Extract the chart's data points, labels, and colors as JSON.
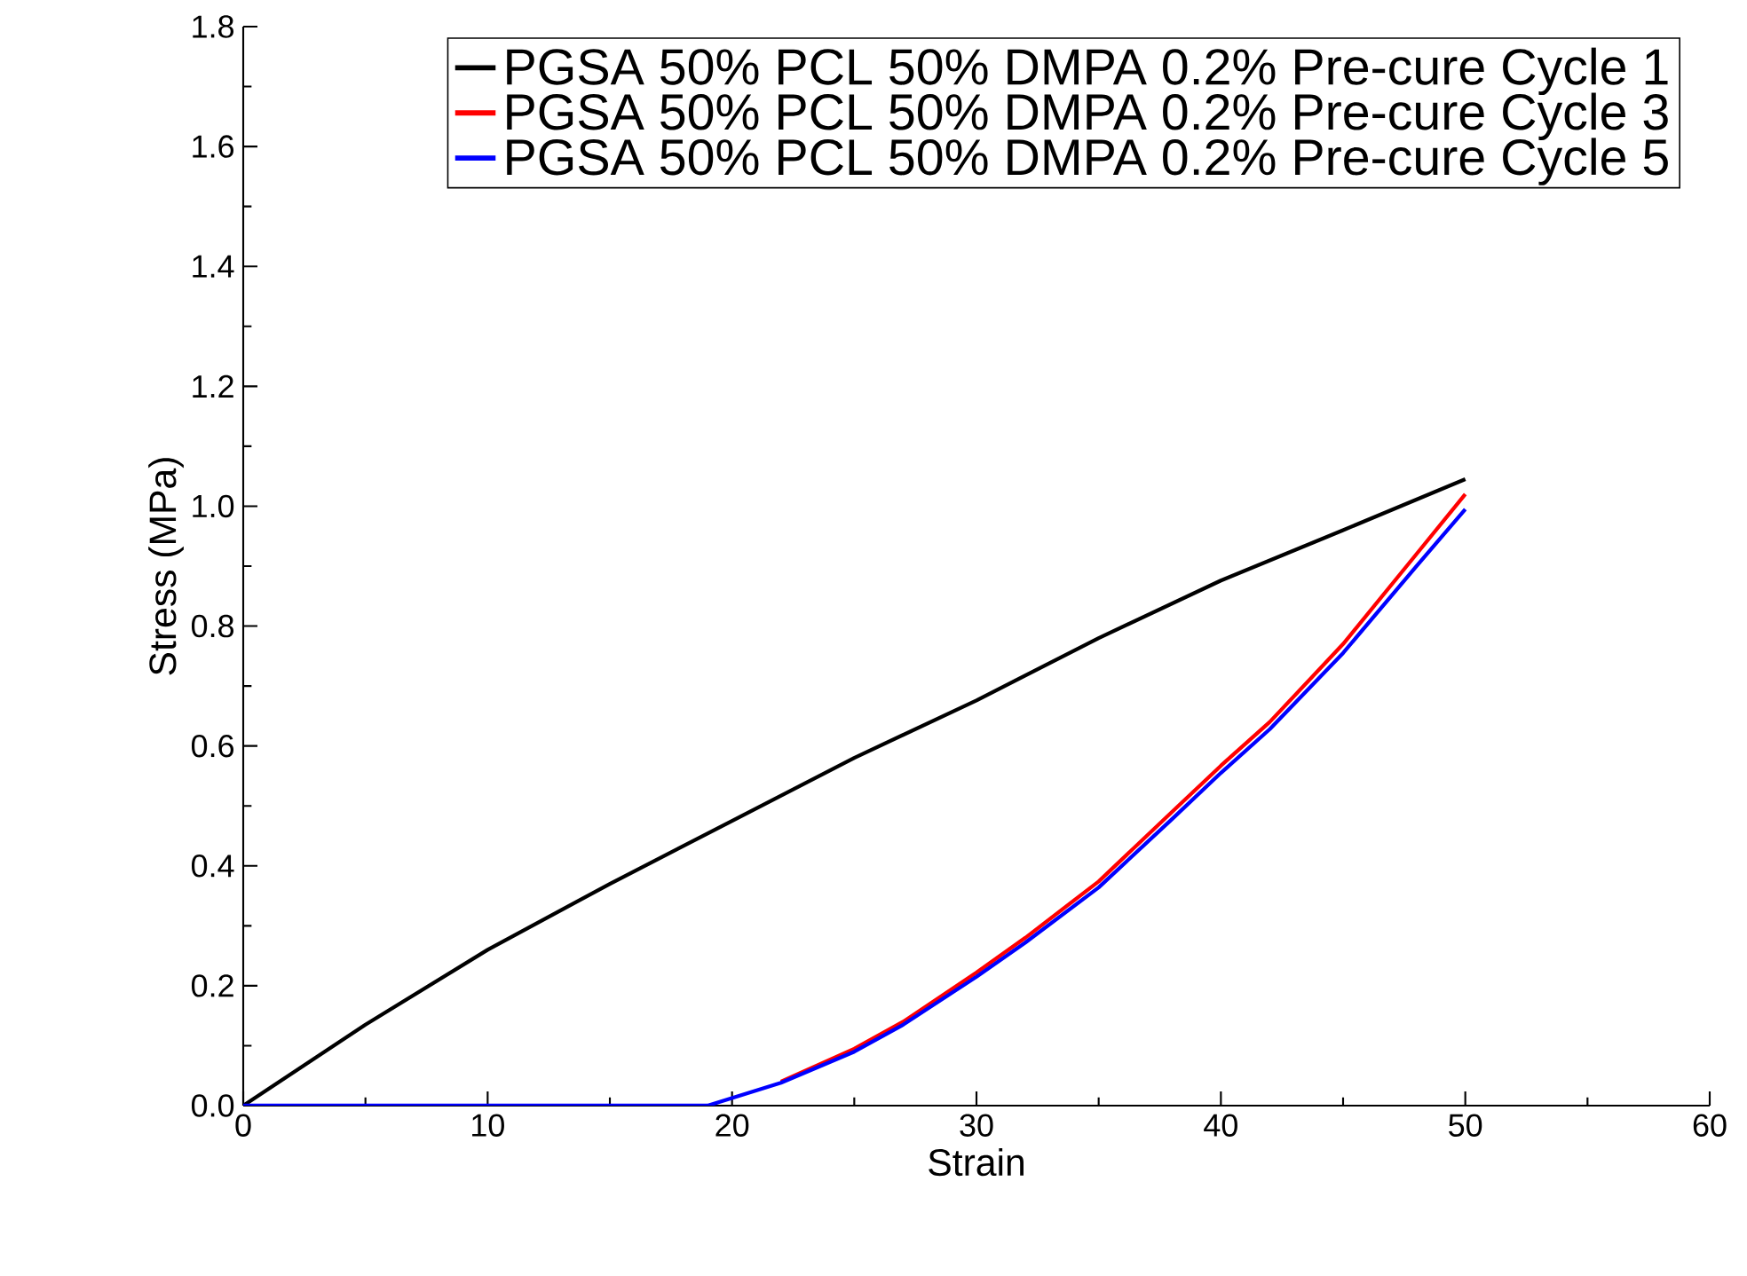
{
  "chart_data": {
    "type": "line",
    "xlabel": "Strain",
    "ylabel": "Stress (MPa)",
    "xlim": [
      0,
      60
    ],
    "ylim": [
      0,
      1.8
    ],
    "xticks": [
      0,
      10,
      20,
      30,
      40,
      50,
      60
    ],
    "yticks": [
      {
        "value": 0,
        "label": "0.0"
      },
      {
        "value": 0.2,
        "label": "0.2"
      },
      {
        "value": 0.4,
        "label": "0.4"
      },
      {
        "value": 0.6,
        "label": "0.6"
      },
      {
        "value": 0.8,
        "label": "0.8"
      },
      {
        "value": 1.0,
        "label": "1.0"
      },
      {
        "value": 1.2,
        "label": "1.2"
      },
      {
        "value": 1.4,
        "label": "1.4"
      },
      {
        "value": 1.6,
        "label": "1.6"
      },
      {
        "value": 1.8,
        "label": "1.8"
      }
    ],
    "legend": "top right",
    "grid": false,
    "marker": "none",
    "line_style": "solid",
    "series": [
      {
        "name": "PGSA 50% PCL 50% DMPA 0.2% Pre-cure Cycle 1",
        "color": "#000000",
        "x": [
          0,
          5,
          10,
          15,
          20,
          25,
          30,
          35,
          40,
          45,
          50
        ],
        "values": [
          0,
          0.135,
          0.26,
          0.37,
          0.475,
          0.58,
          0.676,
          0.78,
          0.876,
          0.96,
          1.045
        ]
      },
      {
        "name": "PGSA 50% PCL 50% DMPA 0.2% Pre-cure Cycle 3",
        "color": "#ff0000",
        "x": [
          22,
          25,
          27,
          30,
          32,
          35,
          38,
          40,
          42,
          45,
          48,
          50
        ],
        "values": [
          0.04,
          0.095,
          0.14,
          0.222,
          0.28,
          0.374,
          0.49,
          0.567,
          0.64,
          0.77,
          0.92,
          1.02
        ]
      },
      {
        "name": "PGSA 50% PCL 50% DMPA 0.2% Pre-cure Cycle 5",
        "color": "#0000ff",
        "x": [
          0,
          10,
          19,
          22,
          25,
          27,
          30,
          32,
          35,
          38,
          40,
          42,
          45,
          48,
          50
        ],
        "values": [
          0,
          0,
          0,
          0.038,
          0.09,
          0.135,
          0.215,
          0.272,
          0.364,
          0.478,
          0.555,
          0.628,
          0.755,
          0.9,
          0.995
        ]
      }
    ]
  }
}
